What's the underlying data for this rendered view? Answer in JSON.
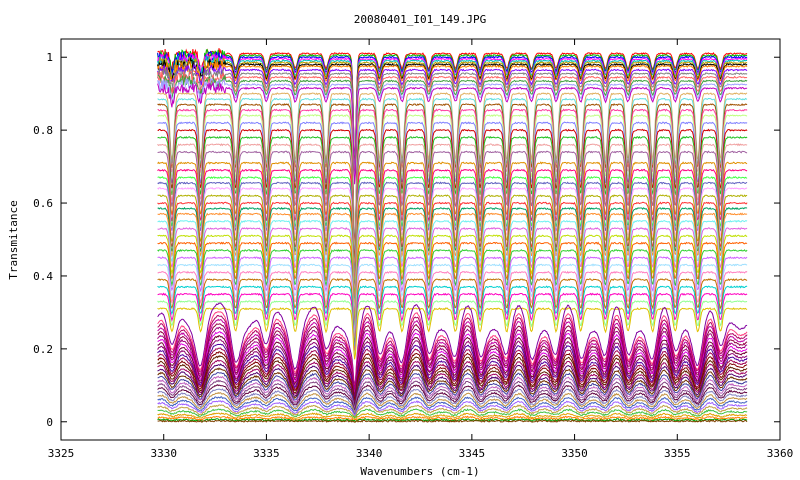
{
  "chart_data": {
    "type": "line",
    "title": "20080401_I01_149.JPG",
    "xlabel": "Wavenumbers (cm-1)",
    "ylabel": "Transmitance",
    "xlim": [
      3325,
      3360
    ],
    "ylim": [
      -0.05,
      1.05
    ],
    "x_data_range": [
      3329.7,
      3358.4
    ],
    "xticks": [
      3325,
      3330,
      3335,
      3340,
      3345,
      3350,
      3355,
      3360
    ],
    "xtick_labels": [
      "3325",
      "3330",
      "3335",
      "3340",
      "3345",
      "3350",
      "3355",
      "3360"
    ],
    "yticks": [
      0,
      0.2,
      0.4,
      0.6,
      0.8,
      1.0
    ],
    "ytick_labels": [
      "0",
      "0.2",
      "0.4",
      "0.6",
      "0.8",
      "1"
    ],
    "grid": false,
    "legend": "none",
    "absorption_lines": [
      3330.4,
      3331.8,
      3333.5,
      3335.0,
      3336.4,
      3337.9,
      3339.3,
      3340.5,
      3341.6,
      3342.9,
      3344.2,
      3345.4,
      3346.7,
      3347.9,
      3349.1,
      3350.3,
      3351.5,
      3352.6,
      3353.8,
      3354.9,
      3356.0,
      3357.1
    ],
    "series_baselines": [
      1.01,
      1.005,
      1.0,
      0.995,
      0.99,
      0.985,
      0.98,
      0.975,
      0.965,
      0.955,
      0.945,
      0.935,
      0.925,
      0.915,
      0.9,
      0.885,
      0.87,
      0.855,
      0.84,
      0.82,
      0.8,
      0.78,
      0.76,
      0.74,
      0.71,
      0.69,
      0.67,
      0.655,
      0.64,
      0.62,
      0.6,
      0.585,
      0.57,
      0.55,
      0.53,
      0.51,
      0.49,
      0.47,
      0.45,
      0.43,
      0.41,
      0.39,
      0.37,
      0.35,
      0.33,
      0.31,
      0.29,
      0.27,
      0.26,
      0.25,
      0.24,
      0.23,
      0.22,
      0.21,
      0.2,
      0.19,
      0.18,
      0.17,
      0.16,
      0.15,
      0.14,
      0.13,
      0.12,
      0.11,
      0.1,
      0.09,
      0.08,
      0.07,
      0.06,
      0.05,
      0.04,
      0.03,
      0.02,
      0.012,
      0.006,
      0.002
    ],
    "series_colors": [
      "#ff0000",
      "#00c000",
      "#0000ff",
      "#ff00ff",
      "#00c0c0",
      "#c0a000",
      "#000000",
      "#ff8000",
      "#8000ff",
      "#808080",
      "#ff6060",
      "#40a040",
      "#a0a0ff",
      "#c000c0",
      "#e0b060",
      "#60e0e0",
      "#a05000",
      "#ff40a0",
      "#c0ff80",
      "#8080ff",
      "#d00000",
      "#20c020",
      "#f0a0a0",
      "#a060a0",
      "#e09000",
      "#ff0080",
      "#40ff40",
      "#6060c0",
      "#ffa0ff",
      "#b0b000",
      "#ff3030",
      "#00a060",
      "#ff9030",
      "#70f0f0",
      "#e060e0",
      "#c0e000",
      "#ff6000",
      "#30d030",
      "#d060ff",
      "#a0e0ff",
      "#ff80c0",
      "#c07000",
      "#00d0d0",
      "#ff00c0",
      "#90ff90",
      "#e0c000",
      "#8000a0",
      "#ff4080",
      "#b00060",
      "#c000a0",
      "#900040",
      "#a00080",
      "#e000e0",
      "#700030",
      "#900070",
      "#5000a0",
      "#a00050",
      "#800000",
      "#602000",
      "#a00060",
      "#500070",
      "#703000",
      "#4040a0",
      "#c060c0",
      "#804080",
      "#600040",
      "#8080c0",
      "#c09040",
      "#4060c0",
      "#a060ff",
      "#c0a040",
      "#40c040",
      "#e0a000",
      "#ff8000",
      "#00a000",
      "#804000"
    ]
  }
}
